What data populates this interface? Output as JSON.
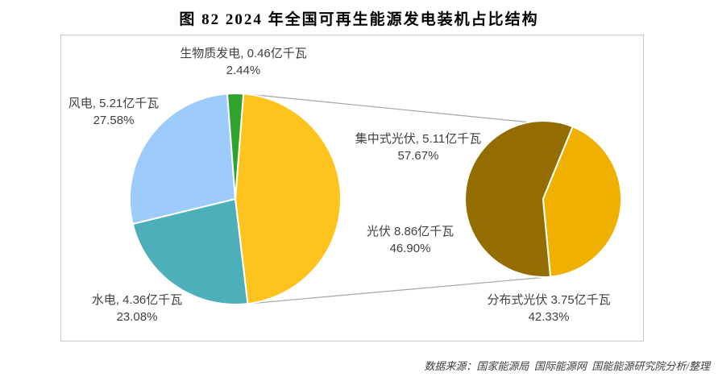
{
  "title": "图 82 2024 年全国可再生能源发电装机占比结构",
  "source": "数据来源：国家能源局  国际能源网  国能能源研究院分析/整理",
  "colors": {
    "pv": "#FFC31E",
    "hydro": "#4CAFBA",
    "wind": "#9DCBFB",
    "biomass": "#2EA32D",
    "centralized_pv": "#936D00",
    "distributed_pv": "#EFB000",
    "series_line": "#A6A6A6",
    "frame_border": "#C9C9C9",
    "label_text": "#404040"
  },
  "chart_data": {
    "type": "pie",
    "subtype": "pie-of-pie",
    "title": "图 82 2024 年全国可再生能源发电装机占比结构",
    "unit": "亿千瓦",
    "legend_position": "none",
    "main_pie": {
      "start_angle_deg": 4.4,
      "slices": [
        {
          "key": "pv",
          "name": "光伏",
          "value": 8.86,
          "pct": 46.9,
          "label": "光伏 8.86亿千瓦",
          "pct_label": "46.90%",
          "color": "#FFC31E"
        },
        {
          "key": "hydro",
          "name": "水电",
          "value": 4.36,
          "pct": 23.08,
          "label": "水电, 4.36亿千瓦",
          "pct_label": "23.08%",
          "color": "#4CAFBA"
        },
        {
          "key": "wind",
          "name": "风电",
          "value": 5.21,
          "pct": 27.58,
          "label": "风电, 5.21亿千瓦",
          "pct_label": "27.58%",
          "color": "#9DCBFB"
        },
        {
          "key": "biomass",
          "name": "生物质发电",
          "value": 0.46,
          "pct": 2.44,
          "label": "生物质发电, 0.46亿千瓦",
          "pct_label": "2.44%",
          "color": "#2EA32D"
        }
      ]
    },
    "secondary_pie": {
      "start_angle_deg": 174.6,
      "slices": [
        {
          "key": "centralized_pv",
          "name": "集中式光伏",
          "value": 5.11,
          "pct": 57.67,
          "label": "集中式光伏, 5.11亿千瓦",
          "pct_label": "57.67%",
          "color": "#936D00"
        },
        {
          "key": "distributed_pv",
          "name": "分布式光伏",
          "value": 3.75,
          "pct": 42.33,
          "label": "分布式光伏 3.75亿千瓦",
          "pct_label": "42.33%",
          "color": "#EFB000"
        }
      ]
    }
  }
}
